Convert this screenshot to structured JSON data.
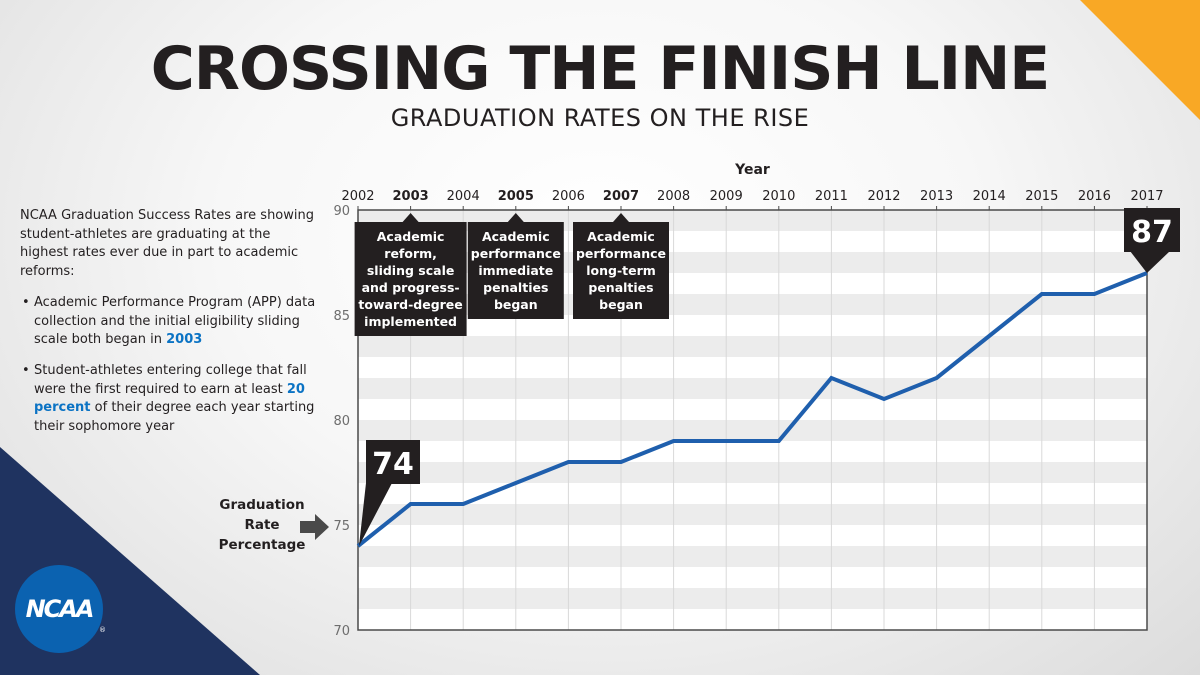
{
  "page": {
    "title": "CROSSING THE FINISH LINE",
    "subtitle": "GRADUATION RATES ON THE RISE",
    "intro": "NCAA Graduation Success Rates are showing student-athletes are graduating at the highest rates ever due in part to academic reforms:",
    "bullets": [
      {
        "pre": "Academic Performance Program (APP) data collection and the initial eligibility sliding scale both began in ",
        "highlight": "2003",
        "post": ""
      },
      {
        "pre": "Student-athletes entering college that fall were the first required to earn at least ",
        "highlight": "20 percent",
        "post": " of their degree each year starting their sophomore year"
      }
    ],
    "ylabel_lines": [
      "Graduation",
      "Rate",
      "Percentage"
    ],
    "logo_text": "NCAA",
    "logo_mark": "®"
  },
  "colors": {
    "line": "#1f5fad",
    "callout": "#231f20",
    "accent_orange": "#f9a825",
    "accent_navy": "#1f3360",
    "highlight_blue": "#0b73c4"
  },
  "chart_data": {
    "type": "line",
    "xlabel": "Year",
    "ylabel": "Graduation Rate Percentage",
    "x": [
      2002,
      2003,
      2004,
      2005,
      2006,
      2007,
      2008,
      2009,
      2010,
      2011,
      2012,
      2013,
      2014,
      2015,
      2016,
      2017
    ],
    "series": [
      {
        "values": [
          74,
          76,
          76,
          77,
          78,
          78,
          79,
          79,
          79,
          82,
          81,
          82,
          84,
          86,
          86,
          87
        ]
      }
    ],
    "ylim": [
      70,
      90
    ],
    "yticks": [
      70,
      75,
      80,
      85,
      90
    ],
    "bold_years": [
      2003,
      2005,
      2007
    ],
    "grid": true,
    "value_labels": [
      {
        "year": 2002,
        "value": 74,
        "text": "74"
      },
      {
        "year": 2017,
        "value": 87,
        "text": "87"
      }
    ],
    "callouts": [
      {
        "year": 2003,
        "lines": [
          "Academic",
          "reform,",
          "sliding scale",
          "and progress-",
          "toward-degree",
          "implemented"
        ]
      },
      {
        "year": 2005,
        "lines": [
          "Academic",
          "performance",
          "immediate",
          "penalties",
          "began"
        ]
      },
      {
        "year": 2007,
        "lines": [
          "Academic",
          "performance",
          "long-term",
          "penalties",
          "began"
        ]
      }
    ]
  }
}
